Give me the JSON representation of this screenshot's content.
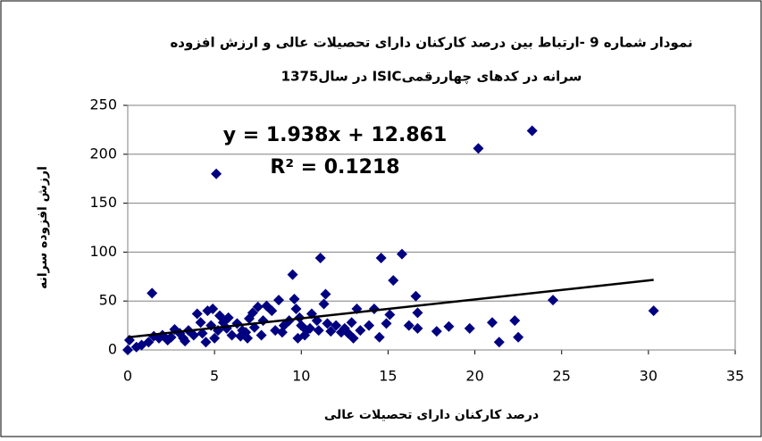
{
  "chart_data": {
    "type": "scatter",
    "title": "نمودار شماره 9 -ارتباط بین درصد کارکنان دارای تحصیلات عالی و ارزش افزوده",
    "subtitle": "سرانه در کدهای چهاررقمیISIC در سال1375",
    "x_label": "درصد کارکنان دارای تحصیلات عالی",
    "y_label": "ارزش افزوده سرانه",
    "equation": "y = 1.938x + 12.861",
    "r_squared": "R² = 0.1218",
    "trendline": {
      "slope": 1.938,
      "intercept": 12.861,
      "x_range": [
        0,
        30.3
      ],
      "color": "#000000"
    },
    "color": "#000080",
    "xlim": [
      0,
      35
    ],
    "xticks": [
      0,
      5,
      10,
      15,
      20,
      25,
      30,
      35
    ],
    "ylim": [
      0,
      250
    ],
    "yticks": [
      0,
      50,
      100,
      150,
      200,
      250
    ],
    "grid": true,
    "x": [
      5.1,
      20.2,
      23.3,
      30.3,
      24.5,
      22.5,
      22.3,
      21.4,
      21,
      19.7,
      18.5,
      17.8,
      16.7,
      16.7,
      16.6,
      16.2,
      15.8,
      15.3,
      15.1,
      14.9,
      14.6,
      14.5,
      14.2,
      13.9,
      13.4,
      13.2,
      12.9,
      12.5,
      12.3,
      12,
      11.7,
      11.4,
      11.3,
      11.1,
      10.9,
      10.6,
      10.3,
      10,
      10.2,
      9.9,
      9.7,
      9.6,
      9.5,
      9.3,
      9,
      8.7,
      8.5,
      8.3,
      8,
      7.8,
      7.5,
      7.3,
      7.2,
      7,
      6.8,
      6.5,
      6.3,
      6,
      5.8,
      5.5,
      5.3,
      5.2,
      5,
      4.9,
      4.8,
      4.6,
      4.5,
      4.3,
      4,
      3.8,
      3.5,
      3.2,
      3,
      2.7,
      2.5,
      2.3,
      2,
      1.8,
      1.5,
      1.4,
      1.2,
      0.8,
      0.5,
      0.1,
      0,
      11,
      12.7,
      6.6,
      7.7,
      8.9,
      10.5,
      13,
      9.8,
      11.5,
      4.2,
      3.3,
      5.7,
      6.9
    ],
    "y": [
      180,
      206,
      224,
      40,
      51,
      13,
      30,
      8,
      28,
      22,
      24,
      19,
      22,
      38,
      55,
      25,
      98,
      71,
      36,
      27,
      94,
      13,
      42,
      25,
      20,
      42,
      28,
      22,
      18,
      25,
      19,
      57,
      47,
      94,
      30,
      37,
      20,
      25,
      15,
      33,
      42,
      52,
      77,
      30,
      25,
      51,
      20,
      40,
      45,
      30,
      44,
      23,
      38,
      32,
      18,
      14,
      27,
      15,
      33,
      28,
      35,
      20,
      12,
      42,
      25,
      40,
      8,
      17,
      37,
      15,
      20,
      12,
      17,
      21,
      13,
      10,
      15,
      12,
      14,
      58,
      8,
      5,
      3,
      10,
      0,
      20,
      17,
      20,
      15,
      18,
      22,
      12,
      12,
      27,
      28,
      9,
      22,
      12
    ]
  }
}
